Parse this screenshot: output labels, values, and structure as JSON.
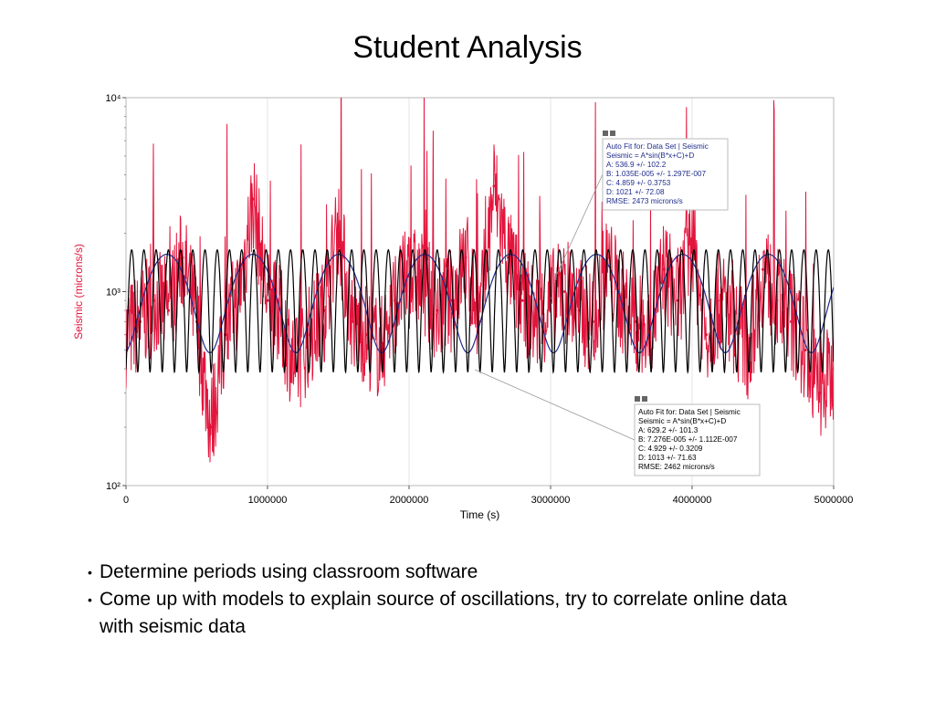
{
  "slide": {
    "title": "Student Analysis",
    "bullets": [
      "Determine periods using classroom software",
      "Come up with models to explain source of oscillations, try to correlate online data with seismic data"
    ]
  },
  "colors": {
    "data": "#e3143c",
    "fit1": "#1f2d8c",
    "fit2": "#000000",
    "grid": "#e6e6e6",
    "ylabel": "#e3143c"
  },
  "chart_data": {
    "type": "line",
    "xlabel": "Time (s)",
    "ylabel": "Seismic (microns/s)",
    "xlim": [
      0,
      5000000
    ],
    "ylim": [
      100,
      10000
    ],
    "yscale": "log",
    "xticks": [
      0,
      1000000,
      2000000,
      3000000,
      4000000,
      5000000
    ],
    "xtick_labels": [
      "0",
      "1000000",
      "2000000",
      "3000000",
      "4000000",
      "5000000"
    ],
    "ytick_labels": [
      "10⁴",
      "10³",
      "10²"
    ],
    "grid": true,
    "series": [
      {
        "kind": "data",
        "x": [
          0,
          100000,
          200000,
          300000,
          400000,
          500000,
          600000,
          700000,
          800000,
          900000,
          1000000,
          1100000,
          1200000,
          1300000,
          1400000,
          1500000,
          1600000,
          1700000,
          1800000,
          1900000,
          2000000,
          2100000,
          2200000,
          2300000,
          2400000,
          2500000,
          2600000,
          2700000,
          2800000,
          2900000,
          3000000,
          3100000,
          3200000,
          3300000,
          3400000,
          3500000,
          3600000,
          3700000,
          3800000,
          3900000,
          4000000,
          4100000,
          4200000,
          4300000,
          4400000,
          4500000,
          4600000,
          4700000,
          4800000,
          4900000,
          5000000
        ],
        "y": [
          600,
          700,
          900,
          800,
          1500,
          700,
          200,
          600,
          1000,
          3000,
          900,
          700,
          400,
          600,
          800,
          2200,
          700,
          600,
          500,
          900,
          1200,
          1100,
          800,
          900,
          1500,
          700,
          3500,
          1500,
          900,
          700,
          900,
          1000,
          800,
          700,
          1400,
          900,
          700,
          600,
          1300,
          900,
          1800,
          600,
          900,
          700,
          500,
          1300,
          900,
          700,
          500,
          300,
          400
        ]
      },
      {
        "kind": "fit",
        "name": "fit1",
        "A": 536.9,
        "B": 1.035e-05,
        "C": 4.859,
        "D": 1021
      },
      {
        "kind": "fit",
        "name": "fit2",
        "A": 629.2,
        "B": 7.276e-05,
        "C": 4.929,
        "D": 1013
      }
    ],
    "annotations": [
      {
        "title": "Auto Fit for: Data Set | Seismic",
        "lines": [
          "Seismic = A*sin(B*x+C)+D",
          "A: 536.9 +/- 102.2",
          "B: 1.035E-005 +/- 1.297E-007",
          "C: 4.859 +/- 0.3753",
          "D: 1021 +/- 72.08",
          "RMSE: 2473 microns/s"
        ]
      },
      {
        "title": "Auto Fit for: Data Set | Seismic",
        "lines": [
          "Seismic = A*sin(B*x+C)+D",
          "A: 629.2 +/- 101.3",
          "B: 7.276E-005 +/- 1.112E-007",
          "C: 4.929 +/- 0.3209",
          "D: 1013 +/- 71.63",
          "RMSE: 2462 microns/s"
        ]
      }
    ]
  }
}
